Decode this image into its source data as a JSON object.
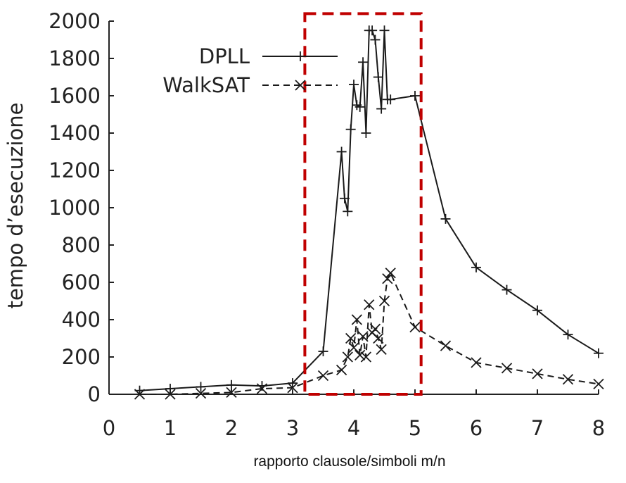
{
  "chart_data": {
    "type": "line",
    "title": "",
    "xlabel": "rapporto clausole/simboli m/n",
    "ylabel": "tempo d’esecuzione",
    "xlim": [
      0,
      8
    ],
    "ylim": [
      0,
      2000
    ],
    "x_ticks": [
      "0",
      "1",
      "2",
      "3",
      "4",
      "5",
      "6",
      "7",
      "8"
    ],
    "y_ticks": [
      "0",
      "200",
      "400",
      "600",
      "800",
      "1000",
      "1200",
      "1400",
      "1600",
      "1800",
      "2000"
    ],
    "legend_position": "top-right",
    "series": [
      {
        "name": "DPLL",
        "line_style": "solid",
        "marker": "plus",
        "x": [
          0.5,
          1,
          1.5,
          2,
          2.5,
          3,
          3.5,
          3.8,
          3.85,
          3.9,
          3.95,
          4.0,
          4.05,
          4.1,
          4.15,
          4.2,
          4.25,
          4.3,
          4.35,
          4.4,
          4.45,
          4.5,
          4.55,
          4.6,
          5,
          5.5,
          6,
          6.5,
          7,
          7.5,
          8
        ],
        "y": [
          20,
          30,
          40,
          50,
          45,
          60,
          230,
          1300,
          1050,
          980,
          1420,
          1660,
          1550,
          1540,
          1780,
          1400,
          1950,
          1950,
          1900,
          1700,
          1530,
          1950,
          1580,
          1580,
          1600,
          940,
          680,
          560,
          450,
          320,
          220
        ]
      },
      {
        "name": "WalkSAT",
        "line_style": "dashed",
        "marker": "cross",
        "x": [
          0.5,
          1,
          1.5,
          2,
          2.5,
          3,
          3.5,
          3.8,
          3.9,
          3.95,
          4.0,
          4.05,
          4.1,
          4.15,
          4.2,
          4.25,
          4.3,
          4.35,
          4.4,
          4.45,
          4.5,
          4.55,
          4.6,
          5,
          5.5,
          6,
          6.5,
          7,
          7.5,
          8
        ],
        "y": [
          0,
          0,
          5,
          10,
          30,
          35,
          100,
          130,
          200,
          300,
          250,
          400,
          210,
          310,
          200,
          480,
          330,
          350,
          300,
          240,
          500,
          620,
          650,
          360,
          260,
          170,
          140,
          110,
          80,
          55
        ]
      }
    ],
    "annotation": {
      "shape": "dashed-rectangle",
      "color": "#c00000",
      "x_range": [
        3.2,
        5.1
      ],
      "y_range": [
        0,
        2040
      ]
    },
    "colors": {
      "series": "#1a1a1a",
      "axis": "#222222",
      "highlight": "#c00000"
    }
  }
}
